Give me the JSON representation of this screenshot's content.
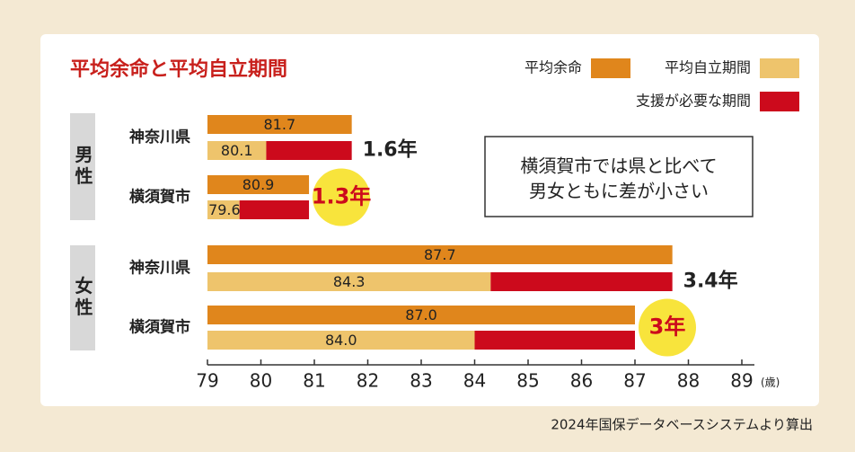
{
  "chart_data": {
    "type": "bar",
    "title": "平均余命と平均自立期間",
    "groups": [
      {
        "name": "男性",
        "categories": [
          "神奈川県",
          "横須賀市"
        ]
      },
      {
        "name": "女性",
        "categories": [
          "神奈川県",
          "横須賀市"
        ]
      }
    ],
    "series": [
      {
        "name": "平均余命",
        "color": "#e0861c",
        "values": [
          81.7,
          80.9,
          87.7,
          87.0
        ],
        "value_labels": [
          "81.7",
          "80.9",
          "87.7",
          "87.0"
        ]
      },
      {
        "name": "平均自立期間",
        "color": "#eec46c",
        "values": [
          80.1,
          79.6,
          84.3,
          84.0
        ],
        "value_labels": [
          "80.1",
          "79.6",
          "84.3",
          "84.0"
        ]
      },
      {
        "name": "支援が必要な期間",
        "color": "#cc0a1c",
        "values": [
          1.6,
          1.3,
          3.4,
          3
        ],
        "value_labels": [
          "1.6年",
          "1.3年",
          "3.4年",
          "3年"
        ],
        "highlight": [
          false,
          true,
          false,
          true
        ],
        "highlight_color": "#f8e43c"
      }
    ],
    "xlim": [
      79,
      89
    ],
    "xticks": [
      79,
      80,
      81,
      82,
      83,
      84,
      85,
      86,
      87,
      88,
      89
    ],
    "x_unit": "(歳)",
    "annotation": [
      "横須賀市では県と比べて",
      "男女ともに差が小さい"
    ],
    "source": "2024年国保データベースシステムより算出"
  }
}
